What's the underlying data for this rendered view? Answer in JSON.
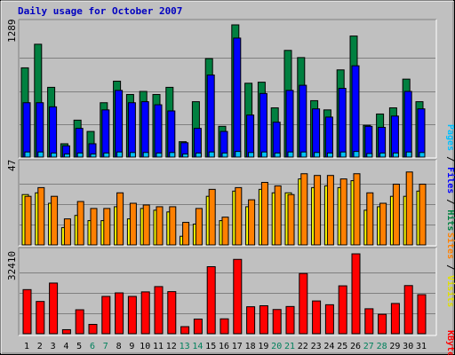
{
  "title": "Daily usage for October 2007",
  "colors": {
    "title": "#0000c0",
    "background": "#c0c0c0",
    "hits": "#008040",
    "files": "#0000ff",
    "pages": "#00c0ff",
    "visits": "#ffff00",
    "sites": "#ff8000",
    "kbytes": "#ff0000",
    "weekend_day": "#00805c",
    "weekday": "#000000"
  },
  "labels": {
    "pages": "Pages",
    "files": "Files",
    "hits": "Hits",
    "sites": "Sites",
    "visits": "Visits",
    "kbytes": "KBytes",
    "sep": " / "
  },
  "chart_data": [
    {
      "type": "bar",
      "panel": "hits-files-pages",
      "ymax_label": "1289",
      "ylim": [
        0,
        1289
      ],
      "categories": [
        "1",
        "2",
        "3",
        "4",
        "5",
        "6",
        "7",
        "8",
        "9",
        "10",
        "11",
        "12",
        "13",
        "14",
        "15",
        "16",
        "17",
        "18",
        "19",
        "20",
        "21",
        "22",
        "23",
        "24",
        "25",
        "26",
        "27",
        "28",
        "29",
        "30",
        "31"
      ],
      "weekend_days": [
        6,
        7,
        13,
        14,
        20,
        21,
        27,
        28
      ],
      "series": [
        {
          "name": "Hits",
          "color": "#008040",
          "values": [
            870,
            1100,
            680,
            130,
            360,
            250,
            530,
            740,
            610,
            640,
            610,
            680,
            150,
            540,
            960,
            300,
            1289,
            720,
            730,
            480,
            1040,
            970,
            550,
            460,
            850,
            1180,
            310,
            420,
            480,
            760,
            540
          ]
        },
        {
          "name": "Files",
          "color": "#0000ff",
          "values": [
            530,
            530,
            490,
            110,
            280,
            130,
            460,
            650,
            530,
            540,
            510,
            450,
            140,
            280,
            800,
            250,
            1160,
            410,
            620,
            340,
            650,
            700,
            470,
            390,
            670,
            890,
            300,
            290,
            400,
            640,
            470
          ]
        },
        {
          "name": "Pages",
          "color": "#00c0ff",
          "values": [
            50,
            50,
            40,
            30,
            40,
            30,
            40,
            50,
            45,
            45,
            40,
            45,
            30,
            40,
            50,
            40,
            55,
            45,
            50,
            40,
            50,
            50,
            45,
            40,
            50,
            55,
            35,
            40,
            40,
            50,
            45
          ]
        }
      ]
    },
    {
      "type": "bar",
      "panel": "visits-sites",
      "ymax_label": "47",
      "ylim": [
        0,
        47
      ],
      "categories": [
        "1",
        "2",
        "3",
        "4",
        "5",
        "6",
        "7",
        "8",
        "9",
        "10",
        "11",
        "12",
        "13",
        "14",
        "15",
        "16",
        "17",
        "18",
        "19",
        "20",
        "21",
        "22",
        "23",
        "24",
        "25",
        "26",
        "27",
        "28",
        "29",
        "30",
        "31"
      ],
      "series": [
        {
          "name": "Visits",
          "color": "#ffff00",
          "values": [
            29,
            30,
            24,
            10,
            17,
            14,
            14,
            22,
            15,
            21,
            20,
            19,
            5,
            12,
            28,
            14,
            31,
            22,
            32,
            30,
            30,
            38,
            33,
            34,
            33,
            37,
            20,
            22,
            28,
            28,
            31
          ]
        },
        {
          "name": "Sites",
          "color": "#ff8000",
          "values": [
            28,
            33,
            28,
            15,
            25,
            21,
            21,
            30,
            24,
            23,
            22,
            22,
            13,
            21,
            32,
            16,
            33,
            26,
            36,
            34,
            29,
            41,
            40,
            40,
            38,
            41,
            30,
            24,
            35,
            42,
            35
          ]
        }
      ]
    },
    {
      "type": "bar",
      "panel": "kbytes",
      "ymax_label": "32410",
      "ylim": [
        0,
        32410
      ],
      "categories": [
        "1",
        "2",
        "3",
        "4",
        "5",
        "6",
        "7",
        "8",
        "9",
        "10",
        "11",
        "12",
        "13",
        "14",
        "15",
        "16",
        "17",
        "18",
        "19",
        "20",
        "21",
        "22",
        "23",
        "24",
        "25",
        "26",
        "27",
        "28",
        "29",
        "30",
        "31"
      ],
      "series": [
        {
          "name": "KBytes",
          "color": "#ff0000",
          "values": [
            17500,
            12800,
            20100,
            1600,
            9500,
            3700,
            14800,
            16200,
            14800,
            16600,
            18700,
            16700,
            2800,
            5800,
            26600,
            5900,
            29500,
            10700,
            11100,
            9600,
            10800,
            23900,
            13000,
            11500,
            19000,
            31700,
            9900,
            7700,
            12000,
            19100,
            15500
          ]
        }
      ]
    }
  ]
}
